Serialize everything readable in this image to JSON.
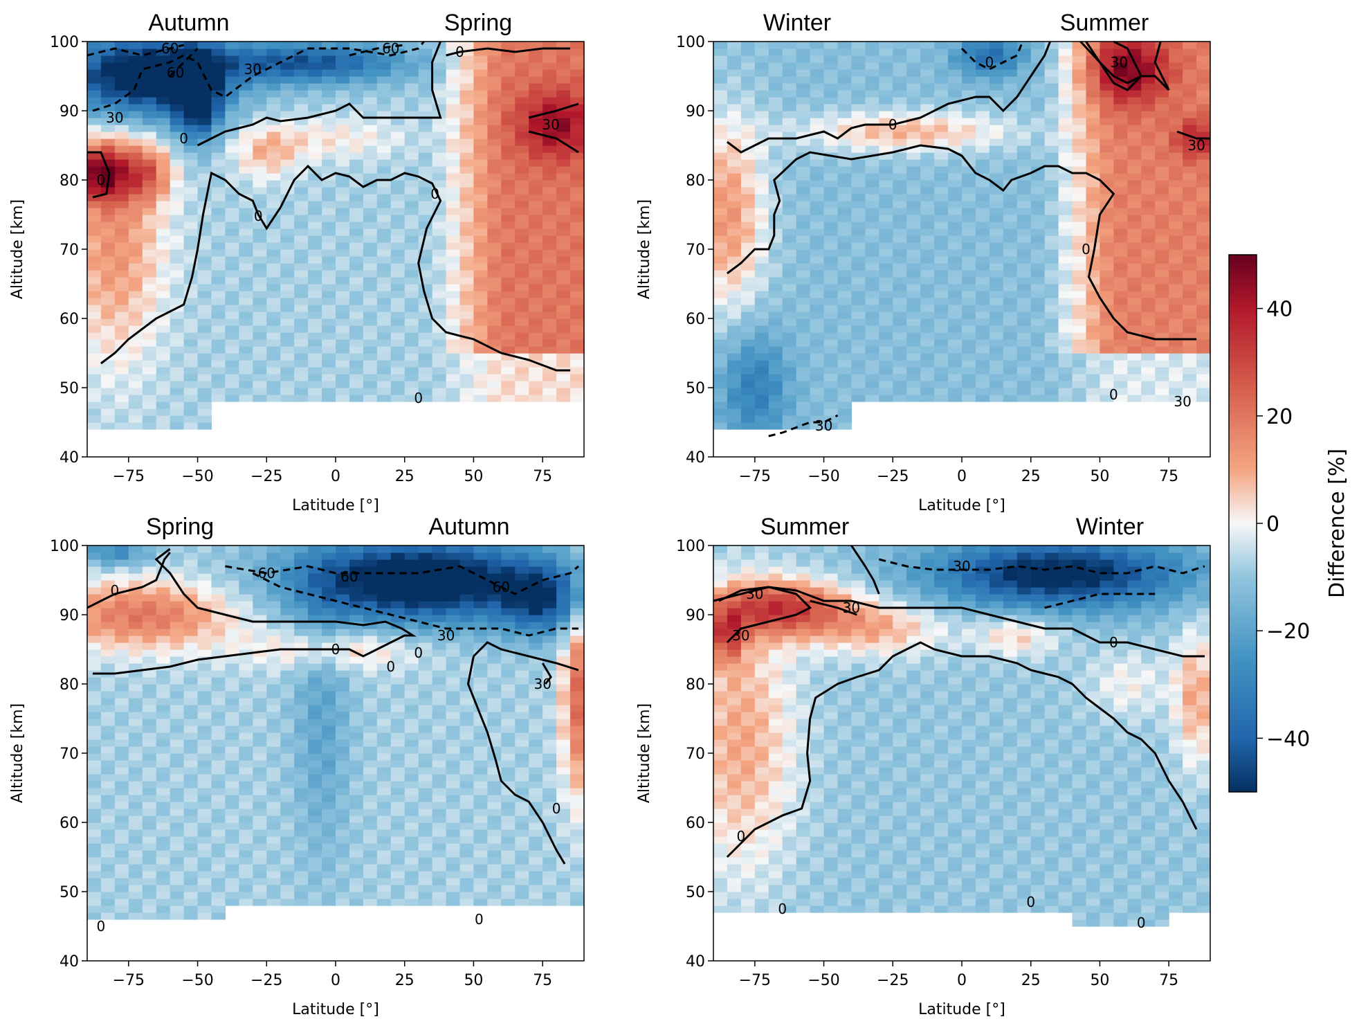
{
  "chart_data": {
    "type": "heatmap",
    "colormap": "RdBu_r",
    "colorbar": {
      "label": "Difference [%]",
      "range": [
        -50,
        50
      ],
      "ticks": [
        -40,
        -20,
        0,
        20,
        40
      ],
      "tick_labels": [
        "−40",
        "−20",
        "0",
        "20",
        "40"
      ]
    },
    "panels": [
      {
        "id": "top-left",
        "season_left": "Autumn",
        "season_right": "Spring",
        "xlabel": "Latitude [°]",
        "ylabel": "Altitude [km]",
        "xlim": [
          -90,
          90
        ],
        "ylim": [
          40,
          100
        ],
        "xticks": [
          -75,
          -50,
          -25,
          0,
          25,
          50,
          75
        ],
        "xtick_labels": [
          "−75",
          "−50",
          "−25",
          "0",
          "25",
          "50",
          "75"
        ],
        "yticks": [
          40,
          50,
          60,
          70,
          80,
          90,
          100
        ],
        "ytick_labels": [
          "40",
          "50",
          "60",
          "70",
          "80",
          "90",
          "100"
        ],
        "contour_levels": [
          -60,
          -30,
          0,
          30
        ],
        "contour_labels": [
          "60",
          "60",
          "60",
          "30",
          "0",
          "30",
          "0",
          "30",
          "0",
          "0",
          "0",
          "0"
        ],
        "values_km_lat_summary": [
          {
            "region": "90S-50S, 85-100 km",
            "value": -40
          },
          {
            "region": "90S-70S, 78-85 km",
            "value": 45
          },
          {
            "region": "50S-40N, 50-80 km",
            "value": -8
          },
          {
            "region": "45N-90N, 55-100 km",
            "value": 20
          },
          {
            "region": "70N-90N, 85-90 km",
            "value": 40
          }
        ]
      },
      {
        "id": "top-right",
        "season_left": "Winter",
        "season_right": "Summer",
        "xlabel": "Latitude [°]",
        "ylabel": "Altitude [km]",
        "xlim": [
          -90,
          90
        ],
        "ylim": [
          40,
          100
        ],
        "xticks": [
          -75,
          -50,
          -25,
          0,
          25,
          50,
          75
        ],
        "xtick_labels": [
          "−75",
          "−50",
          "−25",
          "0",
          "25",
          "50",
          "75"
        ],
        "yticks": [
          40,
          50,
          60,
          70,
          80,
          90,
          100
        ],
        "ytick_labels": [
          "40",
          "50",
          "60",
          "70",
          "80",
          "90",
          "100"
        ],
        "contour_levels": [
          -30,
          0,
          30
        ],
        "contour_labels": [
          "30",
          "0",
          "30",
          "30",
          "0",
          "0",
          "0",
          "30"
        ],
        "values_km_lat_summary": [
          {
            "region": "90S-60S, 60-85 km",
            "value": 15
          },
          {
            "region": "70S-50N, 45-85 km",
            "value": -12
          },
          {
            "region": "40N-90N, 60-100 km",
            "value": 20
          },
          {
            "region": "50N-70N, 93-100 km",
            "value": 40
          }
        ]
      },
      {
        "id": "bottom-left",
        "season_left": "Spring",
        "season_right": "Autumn",
        "xlabel": "Latitude [°]",
        "ylabel": "Altitude [km]",
        "xlim": [
          -90,
          90
        ],
        "ylim": [
          40,
          100
        ],
        "xticks": [
          -75,
          -50,
          -25,
          0,
          25,
          50,
          75
        ],
        "xtick_labels": [
          "−75",
          "−50",
          "−25",
          "0",
          "25",
          "50",
          "75"
        ],
        "yticks": [
          40,
          50,
          60,
          70,
          80,
          90,
          100
        ],
        "ytick_labels": [
          "40",
          "50",
          "60",
          "70",
          "80",
          "90",
          "100"
        ],
        "contour_levels": [
          -60,
          -30,
          0,
          30
        ],
        "contour_labels": [
          "0",
          "60",
          "60",
          "60",
          "0",
          "0",
          "30",
          "0",
          "30",
          "0",
          "0",
          "0"
        ],
        "values_km_lat_summary": [
          {
            "region": "90S-30S, 84-95 km",
            "value": 20
          },
          {
            "region": "40S-80N, 88-100 km",
            "value": -45
          },
          {
            "region": "90S-70N, 48-82 km",
            "value": -10
          },
          {
            "region": "70N-90N, 60-85 km",
            "value": 25
          }
        ]
      },
      {
        "id": "bottom-right",
        "season_left": "Summer",
        "season_right": "Winter",
        "xlabel": "Latitude [°]",
        "ylabel": "Altitude [km]",
        "xlim": [
          -90,
          90
        ],
        "ylim": [
          40,
          100
        ],
        "xticks": [
          -75,
          -50,
          -25,
          0,
          25,
          50,
          75
        ],
        "xtick_labels": [
          "−75",
          "−50",
          "−25",
          "0",
          "25",
          "50",
          "75"
        ],
        "yticks": [
          40,
          50,
          60,
          70,
          80,
          90,
          100
        ],
        "ytick_labels": [
          "40",
          "50",
          "60",
          "70",
          "80",
          "90",
          "100"
        ],
        "contour_levels": [
          -30,
          0,
          30
        ],
        "contour_labels": [
          "30",
          "30",
          "30",
          "30",
          "0",
          "0",
          "0",
          "0",
          "0"
        ],
        "values_km_lat_summary": [
          {
            "region": "90S-40S, 85-95 km",
            "value": 35
          },
          {
            "region": "90S-60S, 60-85 km",
            "value": 15
          },
          {
            "region": "20S-90N, 90-100 km",
            "value": -40
          },
          {
            "region": "50S-60N, 48-85 km",
            "value": -10
          },
          {
            "region": "60N-90N, 60-85 km",
            "value": 15
          }
        ]
      }
    ]
  }
}
